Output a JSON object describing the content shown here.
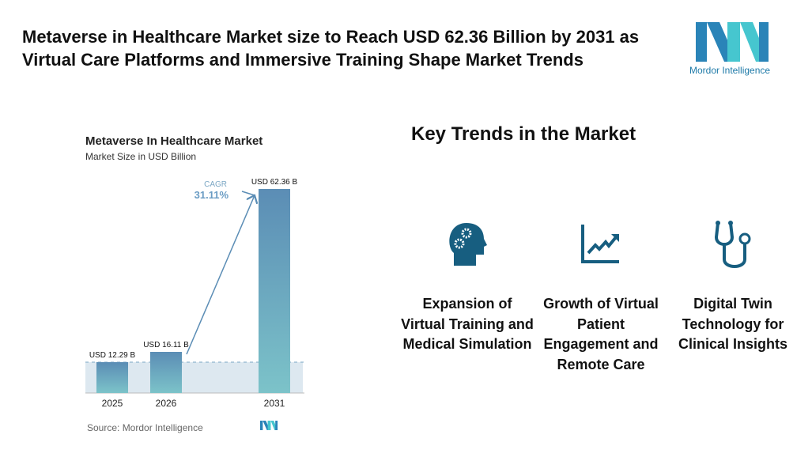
{
  "header": {
    "title": "Metaverse in Healthcare Market size to Reach USD 62.36 Billion by 2031 as Virtual Care Platforms and Immersive Training Shape Market Trends",
    "logo_text": "Mordor Intelligence"
  },
  "chart_data": {
    "type": "bar",
    "title": "Metaverse In Healthcare Market",
    "subtitle": "Market Size in USD Billion",
    "categories": [
      "2025",
      "2026",
      "2031"
    ],
    "values": [
      12.29,
      16.11,
      62.36
    ],
    "data_labels": [
      "USD 12.29 B",
      "USD 16.11 B",
      "USD 62.36 B"
    ],
    "annotation": {
      "label": "CAGR",
      "value": "31.11%"
    },
    "source": "Source:  Mordor Intelligence",
    "grid": false,
    "colors": {
      "bar_top": "#5b8db5",
      "bar_bottom": "#7cc3c9",
      "band": "#dde8f0",
      "arrow": "#5b8db5"
    }
  },
  "trends": {
    "heading": "Key Trends in the Market",
    "items": [
      {
        "icon": "head-gears-icon",
        "label": "Expansion of Virtual Training and Medical Simulation"
      },
      {
        "icon": "growth-chart-icon",
        "label": "Growth of Virtual Patient Engagement and Remote Care"
      },
      {
        "icon": "stethoscope-icon",
        "label": "Digital Twin Technology for Clinical Insights"
      }
    ],
    "icon_color": "#175e80"
  }
}
